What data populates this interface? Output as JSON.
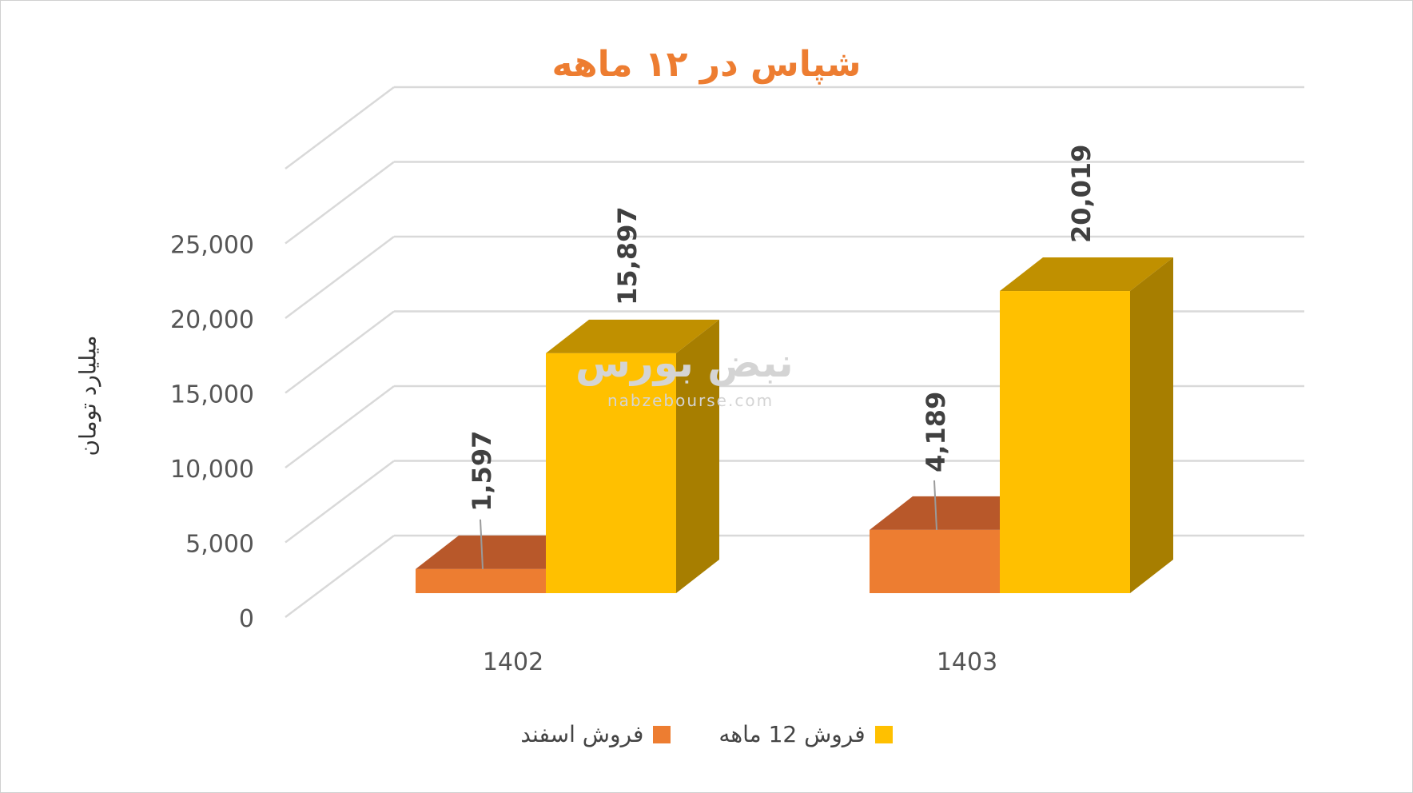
{
  "chart_data": {
    "type": "bar",
    "title": "شپاس در ۱۲ ماهه",
    "ylabel": "میلیارد تومان",
    "xlabel": "",
    "categories": [
      "1402",
      "1403"
    ],
    "series": [
      {
        "name": "فروش اسفند",
        "values": [
          1597,
          4189
        ],
        "labels": [
          "1,597",
          "4,189"
        ],
        "color": "#ED7D31",
        "top_color": "#B8582A"
      },
      {
        "name": "فروش 12  ماهه",
        "values": [
          15897,
          20019
        ],
        "labels": [
          "15,897",
          "20,019"
        ],
        "color": "#FFC000",
        "top_color": "#C09000",
        "side_color": "#A77E00"
      }
    ],
    "yticks": [
      "0",
      "5,000",
      "10,000",
      "15,000",
      "20,000",
      "25,000"
    ],
    "ylim": [
      0,
      30000
    ],
    "grid": true,
    "legend": "bottom",
    "projection": "3d-clustered-column"
  },
  "watermark": {
    "text": "نبض بورس",
    "site": "nabzebourse.com"
  }
}
